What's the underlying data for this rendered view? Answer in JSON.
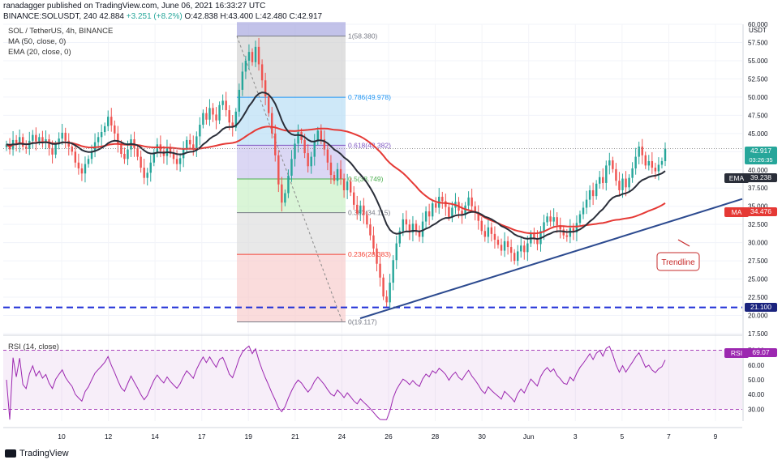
{
  "header": {
    "line1": "ranadagger published on TradingView.com, June 06, 2021 16:33:27 UTC",
    "line2_symbol": "BINANCE:SOLUSDT, 240",
    "last": "42.884",
    "change": "+3.251 (+8.2%)",
    "open": "O:42.838",
    "high": "H:43.400",
    "low": "L:42.480",
    "close": "C:42.917"
  },
  "legend": {
    "pair": "SOL / TetherUS, 4h, BINANCE",
    "ma": "MA (50, close, 0)",
    "ema": "EMA (20, close, 0)"
  },
  "price_axis": {
    "unit": "USDT",
    "ticks": [
      "60.000",
      "57.500",
      "55.000",
      "52.500",
      "50.000",
      "47.500",
      "45.000",
      "42.500",
      "40.000",
      "37.500",
      "35.000",
      "32.500",
      "30.000",
      "27.500",
      "25.000",
      "22.500",
      "20.000",
      "17.500"
    ],
    "last_price": "42.917",
    "countdown": "03:26:35",
    "ema_label": "EMA",
    "ema_value": "39.238",
    "ma_label": "MA",
    "ma_value": "34.476",
    "support_value": "21.100"
  },
  "rsi_panel": {
    "label": "RSI (14, close)",
    "tag": "RSI",
    "value": "69.07",
    "ticks": [
      "70.00",
      "60.00",
      "50.00",
      "40.00",
      "30.00"
    ]
  },
  "time_axis": {
    "ticks": [
      "10",
      "12",
      "14",
      "17",
      "19",
      "21",
      "24",
      "26",
      "28",
      "30",
      "Jun",
      "3",
      "5",
      "7",
      "9"
    ]
  },
  "fibonacci": [
    {
      "label": "1(58.380)",
      "price": 58.38
    },
    {
      "label": "0.786(49.978)",
      "price": 49.978
    },
    {
      "label": "0.618(43.382)",
      "price": 43.382
    },
    {
      "label": "0.5(38.749)",
      "price": 38.749
    },
    {
      "label": "0.382(34.115)",
      "price": 34.115
    },
    {
      "label": "0.236(28.383)",
      "price": 28.383
    },
    {
      "label": "0(19.117)",
      "price": 19.117
    }
  ],
  "annotations": {
    "trendline": "Trendline"
  },
  "colors": {
    "up": "#26a69a",
    "down": "#ef5350",
    "ma": "#e53935",
    "ema": "#2a2e39",
    "trend": "#2c4a8f",
    "support": "#1f2fd6",
    "rsi": "#9c27b0"
  },
  "footer": {
    "brand": "TradingView"
  },
  "chart_data": {
    "type": "candlestick",
    "title": "SOL / TetherUS, 4h, BINANCE",
    "ylim": [
      17.5,
      60
    ],
    "close": [
      43.5,
      42.8,
      44.1,
      43.6,
      44.5,
      43.2,
      42.9,
      44.0,
      44.8,
      43.9,
      44.5,
      43.7,
      44.2,
      43.0,
      42.1,
      43.5,
      44.3,
      45.1,
      44.0,
      43.2,
      42.5,
      41.0,
      40.2,
      39.5,
      40.8,
      41.5,
      42.6,
      43.8,
      44.5,
      45.2,
      46.0,
      47.3,
      46.1,
      45.0,
      43.6,
      42.2,
      41.5,
      42.8,
      44.2,
      43.0,
      41.8,
      40.3,
      38.9,
      39.6,
      41.0,
      42.4,
      43.5,
      42.6,
      41.9,
      43.1,
      42.2,
      41.5,
      40.8,
      41.6,
      42.9,
      44.1,
      43.5,
      42.8,
      44.6,
      46.2,
      47.8,
      46.9,
      48.5,
      47.6,
      46.8,
      48.9,
      49.5,
      48.2,
      46.5,
      45.8,
      48.0,
      51.0,
      53.5,
      55.0,
      56.2,
      54.8,
      56.9,
      54.5,
      52.3,
      50.1,
      47.8,
      45.0,
      42.0,
      38.0,
      35.5,
      36.8,
      39.2,
      41.5,
      43.6,
      45.2,
      44.1,
      42.3,
      40.5,
      41.8,
      43.9,
      45.4,
      44.2,
      42.8,
      41.0,
      39.3,
      38.5,
      40.1,
      38.8,
      37.2,
      38.4,
      36.9,
      35.2,
      34.0,
      35.1,
      33.8,
      32.5,
      31.0,
      29.2,
      27.1,
      25.2,
      22.6,
      21.8,
      24.5,
      27.6,
      29.9,
      31.6,
      33.2,
      32.5,
      31.4,
      32.6,
      31.5,
      30.8,
      32.9,
      34.3,
      33.6,
      35.4,
      34.8,
      36.3,
      35.7,
      34.9,
      33.5,
      34.8,
      35.6,
      34.4,
      33.8,
      35.1,
      36.2,
      35.0,
      34.1,
      33.0,
      31.6,
      30.8,
      32.1,
      31.2,
      30.4,
      29.7,
      28.9,
      30.2,
      29.4,
      28.6,
      27.5,
      28.8,
      29.6,
      28.7,
      29.9,
      31.2,
      30.5,
      29.8,
      31.6,
      32.8,
      33.6,
      32.9,
      33.5,
      32.4,
      31.8,
      31.0,
      30.8,
      32.0,
      31.4,
      32.7,
      33.9,
      34.8,
      35.9,
      37.2,
      36.4,
      38.1,
      39.0,
      38.2,
      40.6,
      41.3,
      40.1,
      38.5,
      37.2,
      38.8,
      37.6,
      38.9,
      40.2,
      41.8,
      43.2,
      42.0,
      40.6,
      41.2,
      40.3,
      39.8,
      40.7,
      41.2,
      42.917
    ]
  }
}
